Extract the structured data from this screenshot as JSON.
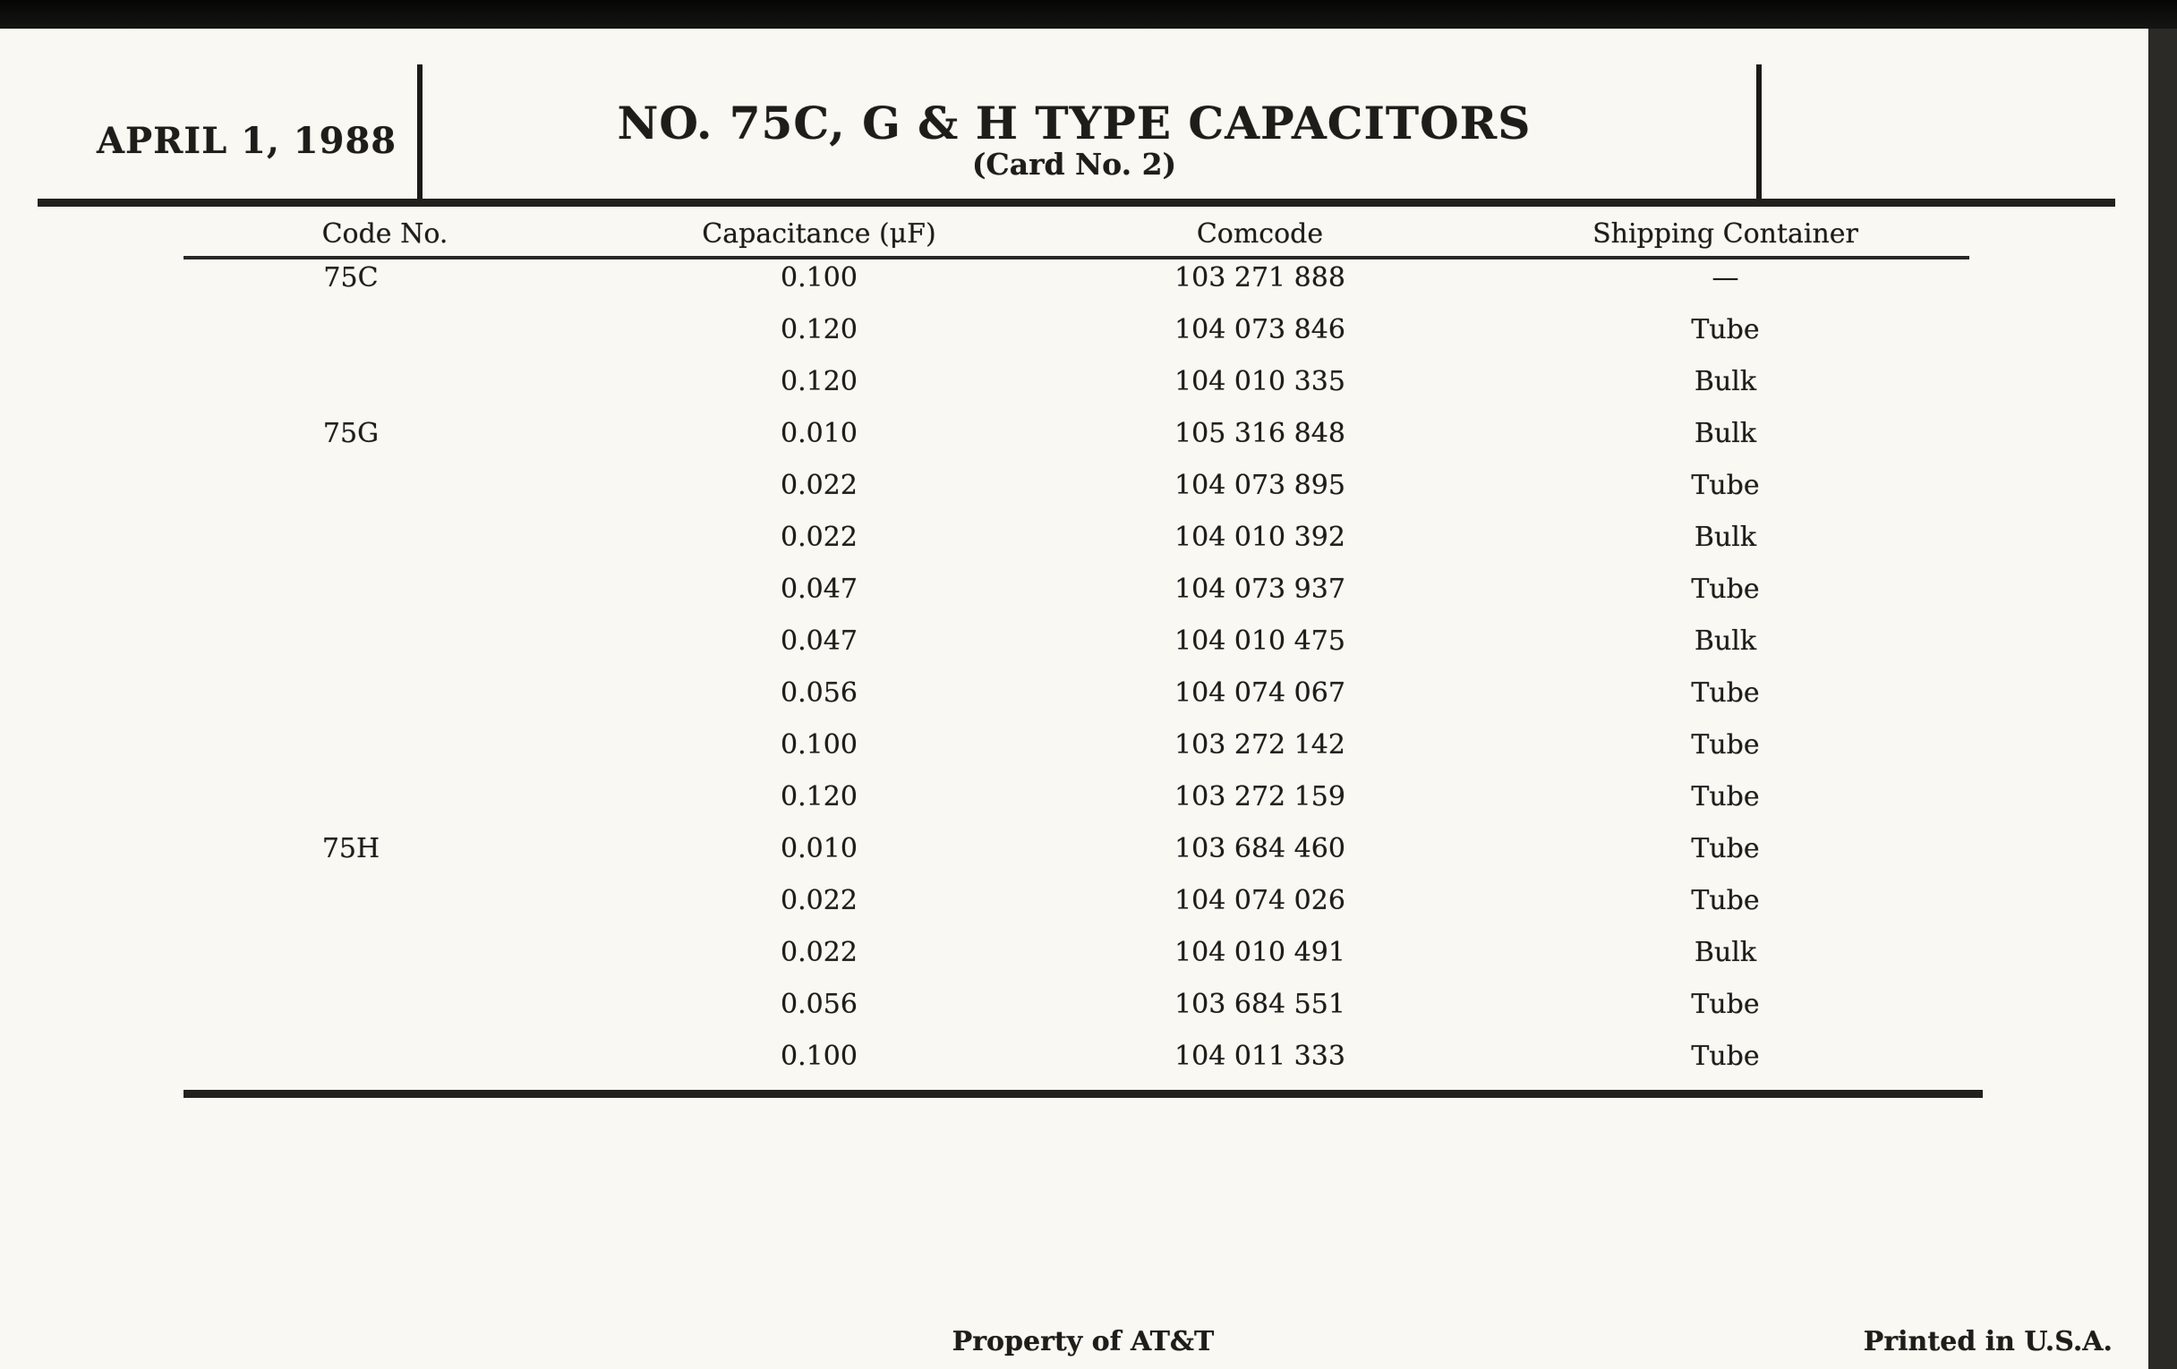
{
  "page": {
    "date": "APRIL 1, 1988",
    "title": "NO. 75C, G & H TYPE CAPACITORS",
    "subtitle": "(Card No. 2)",
    "footer_center": "Property of AT&T",
    "footer_right": "Printed in U.S.A.",
    "paper_color": "#f9f8f3",
    "ink_color": "#1f1d1a"
  },
  "table": {
    "columns": [
      "Code No.",
      "Capacitance (μF)",
      "Comcode",
      "Shipping Container"
    ],
    "rows": [
      {
        "code": "75C",
        "capacitance": "0.100",
        "comcode": "103 271 888",
        "container": "—"
      },
      {
        "code": "",
        "capacitance": "0.120",
        "comcode": "104 073 846",
        "container": "Tube"
      },
      {
        "code": "",
        "capacitance": "0.120",
        "comcode": "104 010 335",
        "container": "Bulk"
      },
      {
        "code": "75G",
        "capacitance": "0.010",
        "comcode": "105 316 848",
        "container": "Bulk"
      },
      {
        "code": "",
        "capacitance": "0.022",
        "comcode": "104 073 895",
        "container": "Tube"
      },
      {
        "code": "",
        "capacitance": "0.022",
        "comcode": "104 010 392",
        "container": "Bulk"
      },
      {
        "code": "",
        "capacitance": "0.047",
        "comcode": "104 073 937",
        "container": "Tube"
      },
      {
        "code": "",
        "capacitance": "0.047",
        "comcode": "104 010 475",
        "container": "Bulk"
      },
      {
        "code": "",
        "capacitance": "0.056",
        "comcode": "104 074 067",
        "container": "Tube"
      },
      {
        "code": "",
        "capacitance": "0.100",
        "comcode": "103 272 142",
        "container": "Tube"
      },
      {
        "code": "",
        "capacitance": "0.120",
        "comcode": "103 272 159",
        "container": "Tube"
      },
      {
        "code": "75H",
        "capacitance": "0.010",
        "comcode": "103 684 460",
        "container": "Tube"
      },
      {
        "code": "",
        "capacitance": "0.022",
        "comcode": "104 074 026",
        "container": "Tube"
      },
      {
        "code": "",
        "capacitance": "0.022",
        "comcode": "104 010 491",
        "container": "Bulk"
      },
      {
        "code": "",
        "capacitance": "0.056",
        "comcode": "103 684 551",
        "container": "Tube"
      },
      {
        "code": "",
        "capacitance": "0.100",
        "comcode": "104 011 333",
        "container": "Tube"
      }
    ]
  }
}
